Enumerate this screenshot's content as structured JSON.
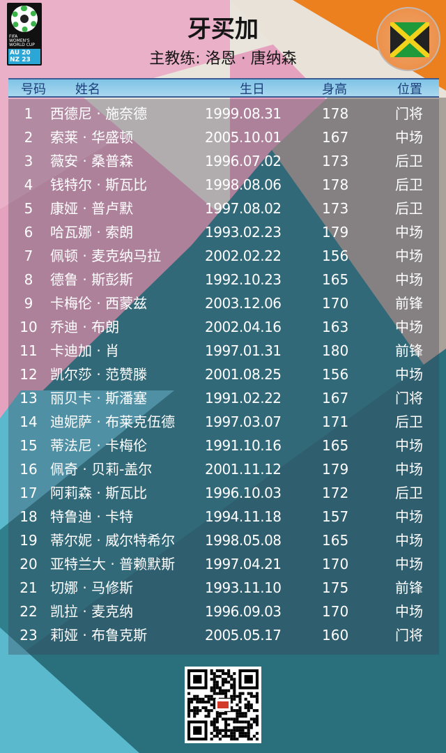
{
  "logo": {
    "line1": "FIFA",
    "line2": "WOMEN'S",
    "line3": "WORLD CUP",
    "host1": "AU 20",
    "host2": "NZ 23"
  },
  "header": {
    "title": "牙买加",
    "coach": "主教练: 洛恩 · 唐纳森",
    "flag": "jamaica-flag"
  },
  "colors": {
    "pink": "#e7a3c0",
    "orange": "#ec7f1e",
    "teal": "#2f7f8d",
    "light_blue": "#62bfd2",
    "header_bar": "#8fcbea"
  },
  "table": {
    "columns": [
      "号码",
      "姓名",
      "生日",
      "身高",
      "位置"
    ],
    "rows": [
      [
        "1",
        "西德尼 · 施奈德",
        "1999.08.31",
        "178",
        "门将"
      ],
      [
        "2",
        "索莱 · 华盛顿",
        "2005.10.01",
        "167",
        "中场"
      ],
      [
        "3",
        "薇安 · 桑普森",
        "1996.07.02",
        "173",
        "后卫"
      ],
      [
        "4",
        "钱特尔 · 斯瓦比",
        "1998.08.06",
        "178",
        "后卫"
      ],
      [
        "5",
        "康娅 · 普卢默",
        "1997.08.02",
        "173",
        "后卫"
      ],
      [
        "6",
        "哈瓦娜 · 索朗",
        "1993.02.23",
        "179",
        "中场"
      ],
      [
        "7",
        "佩顿 · 麦克纳马拉",
        "2002.02.22",
        "156",
        "中场"
      ],
      [
        "8",
        "德鲁 · 斯彭斯",
        "1992.10.23",
        "165",
        "中场"
      ],
      [
        "9",
        "卡梅伦 · 西蒙兹",
        "2003.12.06",
        "170",
        "前锋"
      ],
      [
        "10",
        "乔迪 · 布朗",
        "2002.04.16",
        "163",
        "中场"
      ],
      [
        "11",
        "卡迪加 · 肖",
        "1997.01.31",
        "180",
        "前锋"
      ],
      [
        "12",
        "凯尔莎 · 范赞滕",
        "2001.08.25",
        "156",
        "中场"
      ],
      [
        "13",
        "丽贝卡 · 斯潘塞",
        "1991.02.22",
        "167",
        "门将"
      ],
      [
        "14",
        "迪妮萨 · 布莱克伍德",
        "1997.03.07",
        "171",
        "后卫"
      ],
      [
        "15",
        "蒂法尼 · 卡梅伦",
        "1991.10.16",
        "165",
        "中场"
      ],
      [
        "16",
        "佩奇 · 贝莉-盖尔",
        "2001.11.12",
        "179",
        "中场"
      ],
      [
        "17",
        "阿莉森 · 斯瓦比",
        "1996.10.03",
        "172",
        "后卫"
      ],
      [
        "18",
        "特鲁迪 · 卡特",
        "1994.11.18",
        "157",
        "中场"
      ],
      [
        "19",
        "蒂尔妮 · 威尔特希尔",
        "1998.05.08",
        "165",
        "中场"
      ],
      [
        "20",
        "亚特兰大 · 普赖默斯",
        "1997.04.21",
        "170",
        "中场"
      ],
      [
        "21",
        "切娜 · 马修斯",
        "1993.11.10",
        "175",
        "前锋"
      ],
      [
        "22",
        "凯拉 · 麦克纳",
        "1996.09.03",
        "170",
        "中场"
      ],
      [
        "23",
        "莉娅 · 布鲁克斯",
        "2005.05.17",
        "160",
        "门将"
      ]
    ]
  },
  "footer": {
    "qr": "qr-code"
  }
}
